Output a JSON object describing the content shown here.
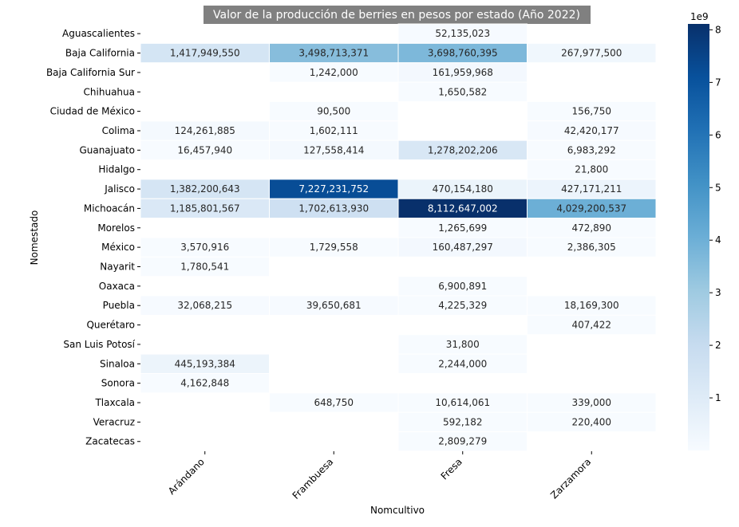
{
  "chart_data": {
    "type": "heatmap",
    "title": "Valor de la producción de berries en pesos por estado (Año 2022)",
    "xlabel": "Nomcultivo",
    "ylabel": "Nomestado",
    "columns": [
      "Arándano",
      "Frambuesa",
      "Fresa",
      "Zarzamora"
    ],
    "rows": [
      "Aguascalientes",
      "Baja California",
      "Baja California Sur",
      "Chihuahua",
      "Ciudad de México",
      "Colima",
      "Guanajuato",
      "Hidalgo",
      "Jalisco",
      "Michoacán",
      "Morelos",
      "México",
      "Nayarit",
      "Oaxaca",
      "Puebla",
      "Querétaro",
      "San Luis Potosí",
      "Sinaloa",
      "Sonora",
      "Tlaxcala",
      "Veracruz",
      "Zacatecas"
    ],
    "values": [
      [
        null,
        null,
        52135023,
        null
      ],
      [
        1417949550,
        3498713371,
        3698760395,
        267977500
      ],
      [
        null,
        1242000,
        161959968,
        null
      ],
      [
        null,
        null,
        1650582,
        null
      ],
      [
        null,
        90500,
        null,
        156750
      ],
      [
        124261885,
        1602111,
        null,
        42420177
      ],
      [
        16457940,
        127558414,
        1278202206,
        6983292
      ],
      [
        null,
        null,
        null,
        21800
      ],
      [
        1382200643,
        7227231752,
        470154180,
        427171211
      ],
      [
        1185801567,
        1702613930,
        8112647002,
        4029200537
      ],
      [
        null,
        null,
        1265699,
        472890
      ],
      [
        3570916,
        1729558,
        160487297,
        2386305
      ],
      [
        1780541,
        null,
        null,
        null
      ],
      [
        null,
        null,
        6900891,
        null
      ],
      [
        32068215,
        39650681,
        4225329,
        18169300
      ],
      [
        null,
        null,
        null,
        407422
      ],
      [
        null,
        null,
        31800,
        null
      ],
      [
        445193384,
        null,
        2244000,
        null
      ],
      [
        4162848,
        null,
        null,
        null
      ],
      [
        null,
        648750,
        10614061,
        339000
      ],
      [
        null,
        null,
        592182,
        220400
      ],
      [
        null,
        null,
        2809279,
        null
      ]
    ],
    "colorbar": {
      "min": 0,
      "max": 8112647002,
      "ticks": [
        1,
        2,
        3,
        4,
        5,
        6,
        7,
        8
      ],
      "offset_label": "1e9",
      "colormap": "Blues"
    }
  }
}
